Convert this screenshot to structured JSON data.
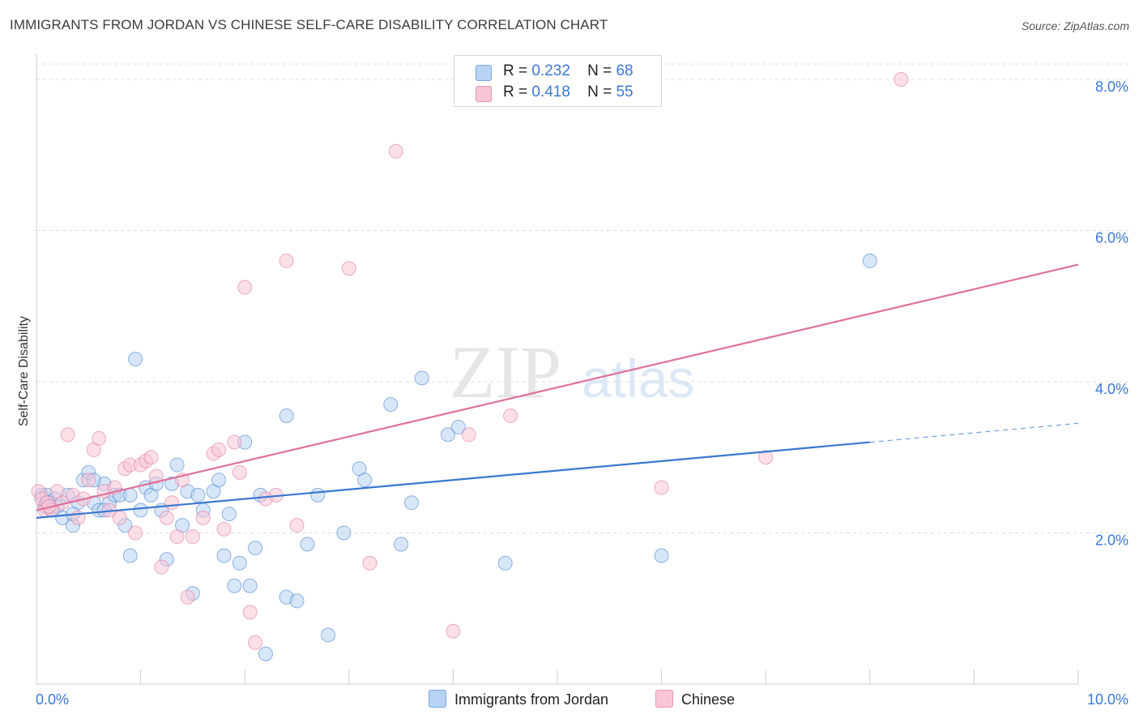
{
  "title": "IMMIGRANTS FROM JORDAN VS CHINESE SELF-CARE DISABILITY CORRELATION CHART",
  "source": "Source: ZipAtlas.com",
  "watermark": {
    "zip": "ZIP",
    "atlas": "atlas"
  },
  "legend": {
    "rows": [
      {
        "r_label": "R =",
        "r_value": "0.232",
        "n_label": "N =",
        "n_value": "68",
        "color": "#9dc0ee"
      },
      {
        "r_label": "R =",
        "r_value": "0.418",
        "n_label": "N =",
        "n_value": "55",
        "color": "#f4a9c0"
      }
    ]
  },
  "bottom_legend": [
    {
      "label": "Immigrants from Jordan",
      "color": "#9dc0ee"
    },
    {
      "label": "Chinese",
      "color": "#f4a9c0"
    }
  ],
  "chart_data": {
    "type": "scatter",
    "xlabel": "",
    "ylabel": "Self-Care Disability",
    "xlim": [
      0,
      10
    ],
    "ylim": [
      0,
      8.3
    ],
    "x_tick_labels": [
      {
        "value": 0,
        "label": "0.0%"
      },
      {
        "value": 10,
        "label": "10.0%"
      }
    ],
    "y_tick_labels": [
      {
        "value": 2,
        "label": "2.0%"
      },
      {
        "value": 4,
        "label": "4.0%"
      },
      {
        "value": 6,
        "label": "6.0%"
      },
      {
        "value": 8,
        "label": "8.0%"
      }
    ],
    "grid": true,
    "series": [
      {
        "name": "Immigrants from Jordan",
        "color": "#3a78d0",
        "fill": "#b8d3f3",
        "trend": {
          "x0": 0,
          "y0": 2.2,
          "x1": 8.0,
          "y1": 3.2,
          "dash_to_x": 10,
          "dash_to_y": 3.45
        },
        "points": [
          [
            0.05,
            2.5
          ],
          [
            0.08,
            2.35
          ],
          [
            0.1,
            2.5
          ],
          [
            0.12,
            2.4
          ],
          [
            0.15,
            2.3
          ],
          [
            0.18,
            2.45
          ],
          [
            0.2,
            2.35
          ],
          [
            0.25,
            2.2
          ],
          [
            0.3,
            2.5
          ],
          [
            0.35,
            2.1
          ],
          [
            0.4,
            2.4
          ],
          [
            0.45,
            2.7
          ],
          [
            0.5,
            2.8
          ],
          [
            0.55,
            2.4
          ],
          [
            0.6,
            2.3
          ],
          [
            0.65,
            2.65
          ],
          [
            0.7,
            2.4
          ],
          [
            0.75,
            2.5
          ],
          [
            0.8,
            2.5
          ],
          [
            0.85,
            2.1
          ],
          [
            0.9,
            1.7
          ],
          [
            0.95,
            4.3
          ],
          [
            1.0,
            2.3
          ],
          [
            1.05,
            2.6
          ],
          [
            1.1,
            2.5
          ],
          [
            1.15,
            2.65
          ],
          [
            1.2,
            2.3
          ],
          [
            1.25,
            1.65
          ],
          [
            1.3,
            2.65
          ],
          [
            1.35,
            2.9
          ],
          [
            1.4,
            2.1
          ],
          [
            1.45,
            2.55
          ],
          [
            1.5,
            1.2
          ],
          [
            1.55,
            2.5
          ],
          [
            1.6,
            2.3
          ],
          [
            1.7,
            2.55
          ],
          [
            1.75,
            2.7
          ],
          [
            1.8,
            1.7
          ],
          [
            1.85,
            2.25
          ],
          [
            1.9,
            1.3
          ],
          [
            1.95,
            1.6
          ],
          [
            2.0,
            3.2
          ],
          [
            2.05,
            1.3
          ],
          [
            2.1,
            1.8
          ],
          [
            2.15,
            2.5
          ],
          [
            2.2,
            0.4
          ],
          [
            2.4,
            1.15
          ],
          [
            2.4,
            3.55
          ],
          [
            2.5,
            1.1
          ],
          [
            2.6,
            1.85
          ],
          [
            2.7,
            2.5
          ],
          [
            2.8,
            0.65
          ],
          [
            2.95,
            2.0
          ],
          [
            3.1,
            2.85
          ],
          [
            3.15,
            2.7
          ],
          [
            3.4,
            3.7
          ],
          [
            3.5,
            1.85
          ],
          [
            3.6,
            2.4
          ],
          [
            3.7,
            4.05
          ],
          [
            3.95,
            3.3
          ],
          [
            4.05,
            3.4
          ],
          [
            4.5,
            1.6
          ],
          [
            6.0,
            1.7
          ],
          [
            8.0,
            5.6
          ],
          [
            0.35,
            2.25
          ],
          [
            0.55,
            2.7
          ],
          [
            0.65,
            2.3
          ],
          [
            0.9,
            2.5
          ]
        ]
      },
      {
        "name": "Chinese",
        "color": "#e0709a",
        "fill": "#f8c6d6",
        "trend": {
          "x0": 0,
          "y0": 2.3,
          "x1": 10,
          "y1": 5.55
        },
        "points": [
          [
            0.02,
            2.55
          ],
          [
            0.05,
            2.45
          ],
          [
            0.08,
            2.3
          ],
          [
            0.1,
            2.4
          ],
          [
            0.15,
            2.3
          ],
          [
            0.2,
            2.55
          ],
          [
            0.25,
            2.4
          ],
          [
            0.3,
            3.3
          ],
          [
            0.35,
            2.5
          ],
          [
            0.4,
            2.2
          ],
          [
            0.45,
            2.45
          ],
          [
            0.5,
            2.7
          ],
          [
            0.55,
            3.1
          ],
          [
            0.6,
            3.25
          ],
          [
            0.65,
            2.55
          ],
          [
            0.7,
            2.3
          ],
          [
            0.75,
            2.6
          ],
          [
            0.8,
            2.2
          ],
          [
            0.85,
            2.85
          ],
          [
            0.9,
            2.9
          ],
          [
            0.95,
            2.0
          ],
          [
            1.0,
            2.9
          ],
          [
            1.05,
            2.95
          ],
          [
            1.1,
            3.0
          ],
          [
            1.15,
            2.75
          ],
          [
            1.2,
            1.55
          ],
          [
            1.25,
            2.2
          ],
          [
            1.3,
            2.4
          ],
          [
            1.35,
            1.95
          ],
          [
            1.4,
            2.7
          ],
          [
            1.45,
            1.15
          ],
          [
            1.5,
            1.95
          ],
          [
            1.6,
            2.2
          ],
          [
            1.7,
            3.05
          ],
          [
            1.75,
            3.1
          ],
          [
            1.8,
            2.05
          ],
          [
            1.9,
            3.2
          ],
          [
            1.95,
            2.8
          ],
          [
            2.0,
            5.25
          ],
          [
            2.05,
            0.95
          ],
          [
            2.1,
            0.55
          ],
          [
            2.2,
            2.45
          ],
          [
            2.3,
            2.5
          ],
          [
            2.4,
            5.6
          ],
          [
            2.5,
            2.1
          ],
          [
            3.0,
            5.5
          ],
          [
            3.2,
            1.6
          ],
          [
            3.45,
            7.05
          ],
          [
            4.0,
            0.7
          ],
          [
            4.15,
            3.3
          ],
          [
            4.55,
            3.55
          ],
          [
            6.0,
            2.6
          ],
          [
            7.0,
            3.0
          ],
          [
            8.3,
            8.0
          ],
          [
            0.12,
            2.35
          ]
        ]
      }
    ]
  }
}
